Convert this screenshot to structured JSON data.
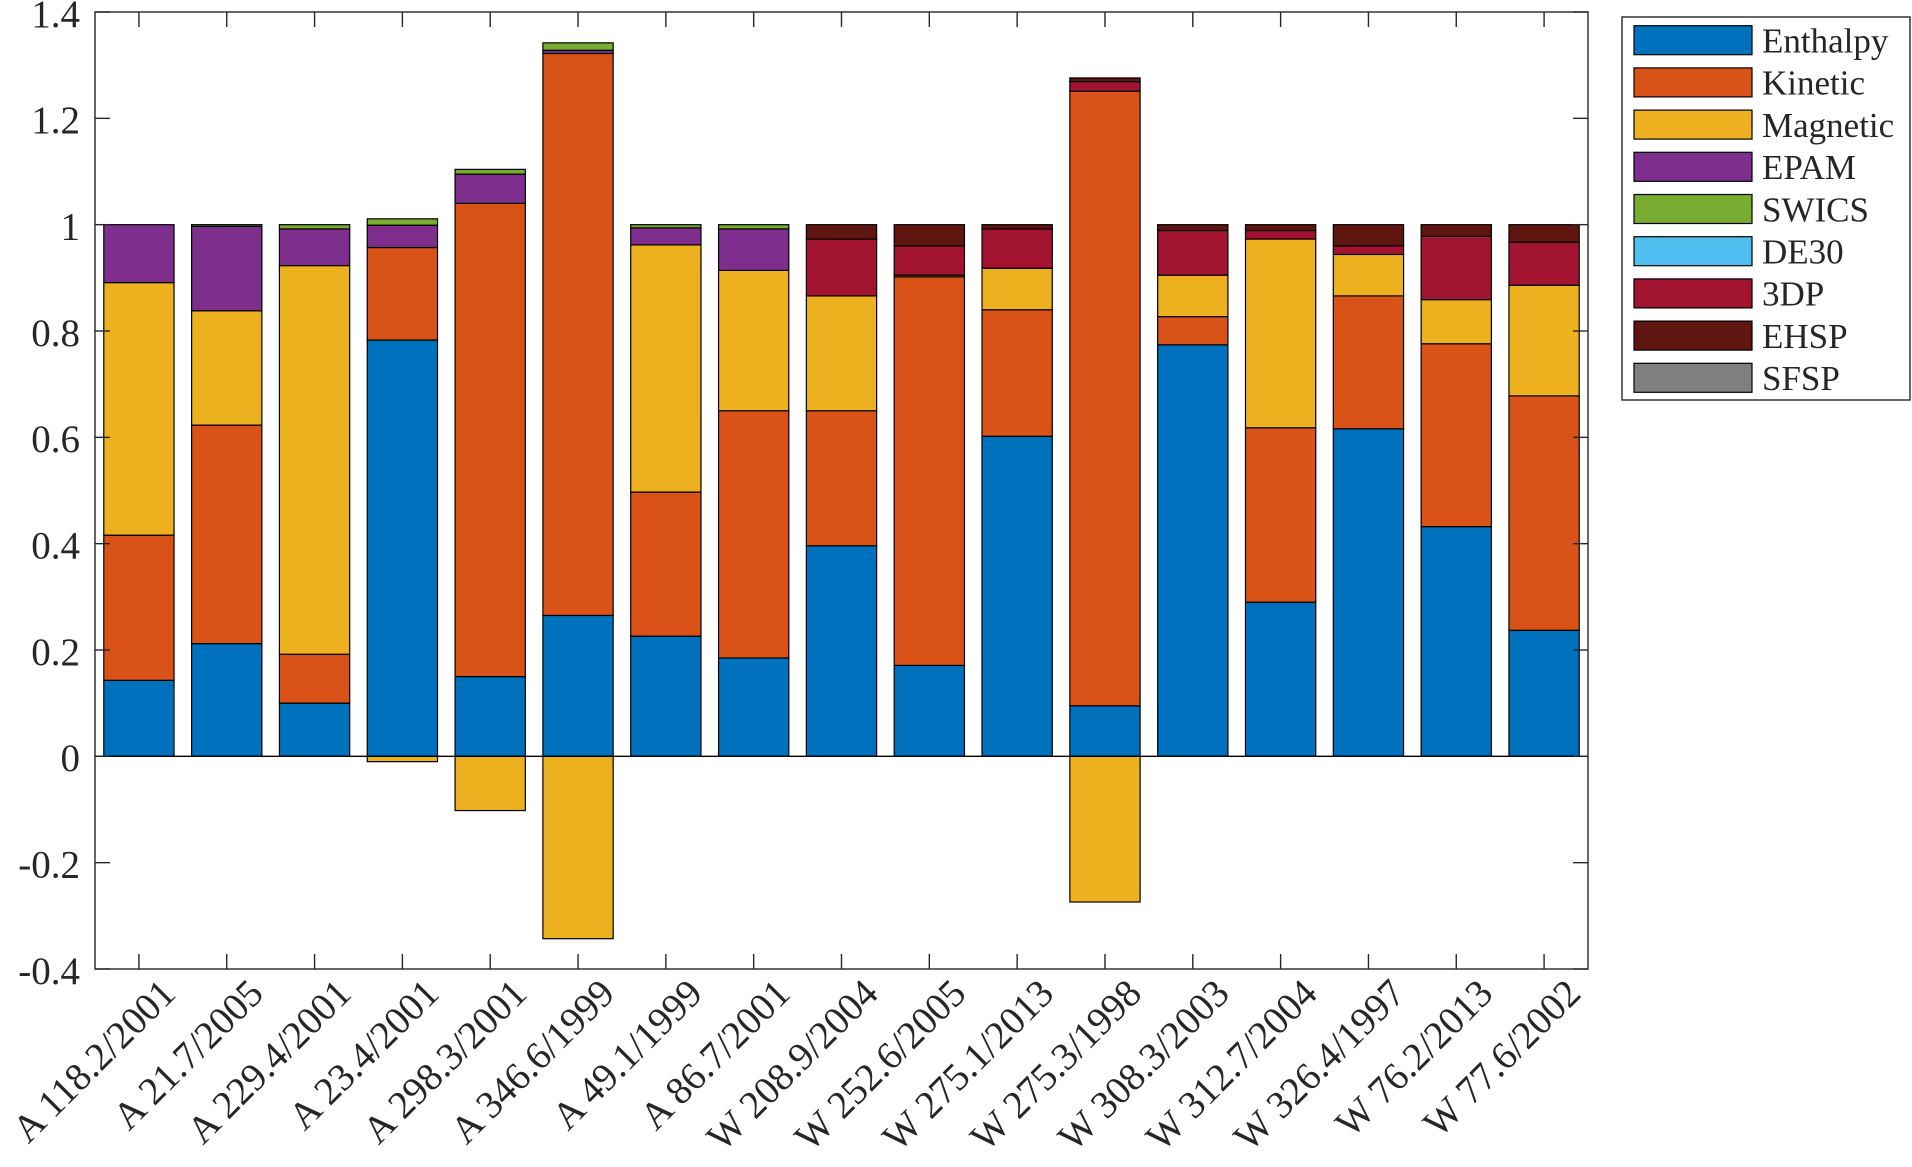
{
  "chart_data": {
    "type": "bar",
    "stacked": true,
    "grid": false,
    "legend_position": "outside-top-right",
    "ylim": [
      -0.4,
      1.4
    ],
    "yticks": [
      -0.4,
      -0.2,
      0,
      0.2,
      0.4,
      0.6,
      0.8,
      1,
      1.2,
      1.4
    ],
    "ytick_labels": [
      "-0.4",
      "-0.2",
      "0",
      "0.2",
      "0.4",
      "0.6",
      "0.8",
      "1",
      "1.2",
      "1.4"
    ],
    "categories": [
      "A 118.2/2001",
      "A 21.7/2005",
      "A 229.4/2001",
      "A 23.4/2001",
      "A 298.3/2001",
      "A 346.6/1999",
      "A 49.1/1999",
      "A 86.7/2001",
      "W 208.9/2004",
      "W 252.6/2005",
      "W 275.1/2013",
      "W 275.3/1998",
      "W 308.3/2003",
      "W 312.7/2004",
      "W 326.4/1997",
      "W 76.2/2013",
      "W 77.6/2002"
    ],
    "series": [
      {
        "name": "Enthalpy",
        "color": "#0072BD",
        "values": [
          0.143,
          0.212,
          0.1,
          0.783,
          0.15,
          0.265,
          0.226,
          0.185,
          0.396,
          0.171,
          0.602,
          0.095,
          0.774,
          0.29,
          0.616,
          0.432,
          0.237
        ]
      },
      {
        "name": "Kinetic",
        "color": "#D95319",
        "values": [
          0.273,
          0.411,
          0.092,
          0.174,
          0.89,
          1.057,
          0.271,
          0.465,
          0.254,
          0.731,
          0.238,
          1.156,
          0.053,
          0.328,
          0.25,
          0.344,
          0.441
        ]
      },
      {
        "name": "Magnetic",
        "color": "#EDB120",
        "values": [
          0.475,
          0.215,
          0.731,
          -0.01,
          -0.102,
          -0.343,
          0.465,
          0.264,
          0.216,
          0.003,
          0.078,
          -0.274,
          0.078,
          0.355,
          0.078,
          0.083,
          0.208
        ]
      },
      {
        "name": "EPAM",
        "color": "#7E2F8E",
        "values": [
          0.109,
          0.159,
          0.069,
          0.042,
          0.055,
          0.006,
          0.032,
          0.078,
          0,
          0,
          0,
          0,
          0,
          0,
          0,
          0,
          0
        ]
      },
      {
        "name": "SWICS",
        "color": "#77AC30",
        "values": [
          0,
          0.003,
          0.008,
          0.012,
          0.009,
          0.014,
          0.006,
          0.008,
          0,
          0,
          0,
          0,
          0,
          0,
          0,
          0,
          0
        ]
      },
      {
        "name": "DE30",
        "color": "#4DBEEE",
        "values": [
          0,
          0,
          0,
          0,
          0,
          0,
          0,
          0,
          0,
          0,
          0,
          0,
          0,
          0,
          0,
          0,
          0
        ]
      },
      {
        "name": "3DP",
        "color": "#A2142F",
        "values": [
          0,
          0,
          0,
          0,
          0,
          0,
          0,
          0,
          0.107,
          0.055,
          0.074,
          0.018,
          0.084,
          0.016,
          0.016,
          0.119,
          0.081
        ]
      },
      {
        "name": "EHSP",
        "color": "#5F1610",
        "values": [
          0,
          0,
          0,
          0,
          0,
          0,
          0,
          0,
          0.027,
          0.04,
          0.008,
          0.007,
          0.011,
          0.011,
          0.04,
          0.022,
          0.033
        ]
      },
      {
        "name": "SFSP",
        "color": "#808080",
        "values": [
          0,
          0,
          0,
          0,
          0,
          0,
          0,
          0,
          0,
          0,
          0,
          0,
          0,
          0,
          0,
          0,
          0
        ]
      }
    ]
  }
}
